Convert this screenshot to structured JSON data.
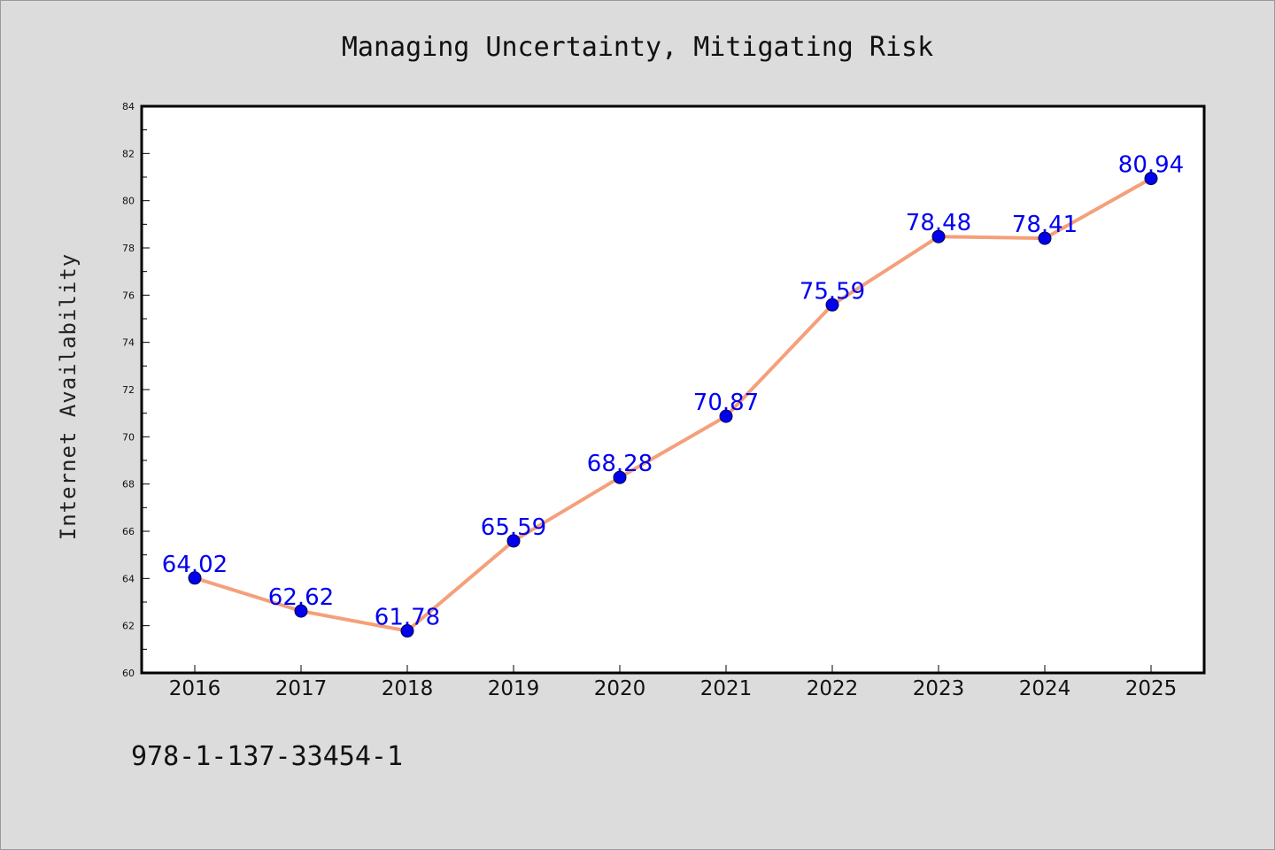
{
  "chart_data": {
    "type": "line",
    "title": "Managing Uncertainty, Mitigating Risk",
    "xlabel": "",
    "ylabel": "Internet Availability",
    "categories": [
      "2016",
      "2017",
      "2018",
      "2019",
      "2020",
      "2021",
      "2022",
      "2023",
      "2024",
      "2025"
    ],
    "series": [
      {
        "values": [
          64.02,
          62.62,
          61.78,
          65.59,
          68.28,
          70.87,
          75.59,
          78.48,
          78.41,
          80.94
        ],
        "line_color": "#f4a07a",
        "marker_color": "#0000ee"
      }
    ],
    "data_labels": [
      "64.02",
      "62.62",
      "61.78",
      "65.59",
      "68.28",
      "70.87",
      "75.59",
      "78.48",
      "78.41",
      "80.94"
    ],
    "ylim": [
      60,
      84
    ],
    "yticks": [
      60,
      62,
      64,
      66,
      68,
      70,
      72,
      74,
      76,
      78,
      80,
      82,
      84
    ],
    "grid": false,
    "legend": "none"
  },
  "footer": {
    "code": "978-1-137-33454-1"
  }
}
